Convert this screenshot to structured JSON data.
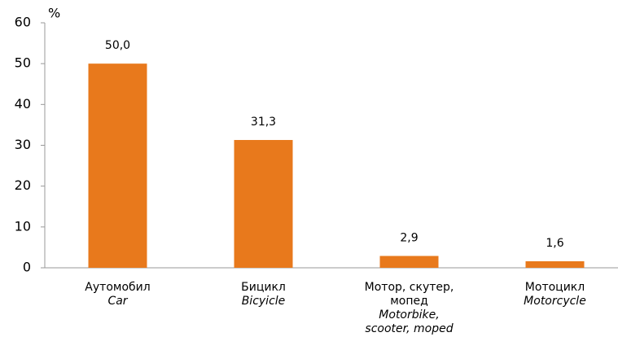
{
  "chart_data": {
    "type": "bar",
    "y_unit": "%",
    "categories": [
      "Аутомобил",
      "Бицикл",
      "Мотор, скутер, мопед",
      "Мотоцикл"
    ],
    "categories_en": [
      "Car",
      "Bicyicle",
      "Motorbike, scooter, moped",
      "Motorcycle"
    ],
    "values": [
      50.0,
      31.3,
      2.9,
      1.6
    ],
    "value_labels": [
      "50,0",
      "31,3",
      "2,9",
      "1,6"
    ],
    "color": "#e8791c",
    "ylim": [
      0,
      60
    ],
    "yticks": [
      0,
      10,
      20,
      30,
      40,
      50,
      60
    ]
  }
}
